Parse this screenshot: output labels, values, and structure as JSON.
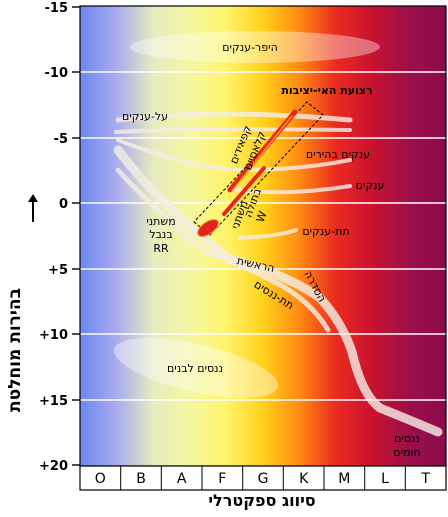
{
  "axes": {
    "y_title": "בהירות מוחלטת",
    "x_title": "סיווג ספקטרלי",
    "y_ticks": [
      "-15",
      "-10",
      "-5",
      "0",
      "+5",
      "+10",
      "+15",
      "+20"
    ],
    "x_classes": [
      "O",
      "B",
      "A",
      "F",
      "G",
      "K",
      "M",
      "L",
      "T"
    ],
    "y_range": [
      -15,
      20
    ],
    "y_inverted": true
  },
  "regions": {
    "hypergiants": "היפר-ענקים",
    "supergiants": "על-ענקים",
    "instability_strip": "רצועת האי-יציבות",
    "cepheids_1": "קפאידים",
    "cepheids_2": "קלאסיים",
    "bright_giants": "ענקים בהירים",
    "giants": "ענקים",
    "w_virginis_1": "משתני",
    "w_virginis_2": "בתולה",
    "w_virginis_3": "W",
    "subgiants": "תת-ענקים",
    "rr_lyrae_1": "משתני",
    "rr_lyrae_2": "בנבל",
    "rr_lyrae_3": "RR",
    "main_sequence_1": "הראשית",
    "main_sequence_2": "הסדרה",
    "subdwarfs": "תת-ננסים",
    "white_dwarfs": "ננסים לבנים",
    "brown_dwarfs_1": "ננסים",
    "brown_dwarfs_2": "חומים"
  },
  "colors": {
    "spectrum": [
      "#6d86f0",
      "#a9acef",
      "#e6ebc0",
      "#f4f7a0",
      "#fff36a",
      "#ffd21a",
      "#ff8a12",
      "#ea2a20",
      "#c8132e",
      "#9c0f4a",
      "#8a0a4c"
    ],
    "grid": "#ffffff",
    "instability_fill": "#e0241c"
  }
}
